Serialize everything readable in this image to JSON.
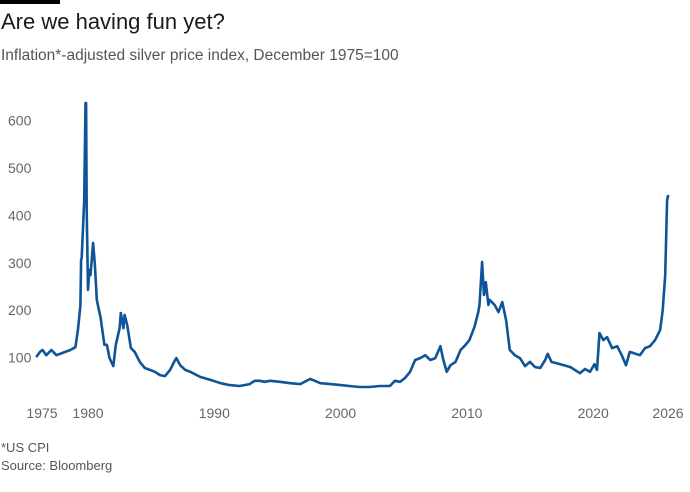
{
  "title": "Are we having fun yet?",
  "subtitle": "Inflation*-adjusted silver price index, December 1975=100",
  "footnote": "*US CPI",
  "source": "Source: Bloomberg",
  "chart_data": {
    "type": "line",
    "title": "Are we having fun yet?",
    "subtitle": "Inflation*-adjusted silver price index, December 1975=100",
    "xlabel": "",
    "ylabel": "",
    "xlim": [
      1975.8,
      2026
    ],
    "ylim": [
      0,
      650
    ],
    "grid": false,
    "line_color": "#0f5499",
    "x_ticks": [
      1975,
      1980,
      1990,
      2000,
      2010,
      2020,
      2026
    ],
    "y_ticks": [
      100,
      200,
      300,
      400,
      500,
      600
    ],
    "series": [
      {
        "x": [
          1975.9,
          1976.2,
          1976.4,
          1976.7,
          1977.1,
          1977.5,
          1978.2,
          1978.6,
          1979.0,
          1979.2,
          1979.4,
          1979.45,
          1979.5,
          1979.7,
          1979.8,
          1979.85,
          1979.9,
          1980.0,
          1980.1,
          1980.2,
          1980.4,
          1980.55,
          1980.7,
          1981.0,
          1981.3,
          1981.5,
          1981.7,
          1982.0,
          1982.2,
          1982.5,
          1982.6,
          1982.8,
          1982.9,
          1983.1,
          1983.4,
          1983.7,
          1984.1,
          1984.5,
          1984.9,
          1985.3,
          1985.7,
          1986.1,
          1986.5,
          1986.9,
          1987.0,
          1987.3,
          1987.7,
          1988.1,
          1988.9,
          1989.7,
          1990.5,
          1991.2,
          1992.0,
          1992.8,
          1993.2,
          1993.6,
          1994.0,
          1994.4,
          1995.2,
          1996.0,
          1996.8,
          1997.6,
          1998.4,
          1999.2,
          2000.0,
          2000.7,
          2001.5,
          2002.3,
          2003.1,
          2003.9,
          2004.3,
          2004.7,
          2005.1,
          2005.5,
          2005.9,
          2006.3,
          2006.7,
          2007.1,
          2007.5,
          2007.9,
          2008.1,
          2008.4,
          2008.7,
          2009.1,
          2009.5,
          2009.9,
          2010.2,
          2010.6,
          2010.9,
          2011.0,
          2011.2,
          2011.35,
          2011.5,
          2011.7,
          2011.8,
          2012.2,
          2012.5,
          2012.8,
          2013.1,
          2013.4,
          2013.8,
          2014.2,
          2014.6,
          2015.0,
          2015.4,
          2015.8,
          2016.2,
          2016.4,
          2016.7,
          2017.4,
          2018.2,
          2018.95,
          2019.35,
          2019.75,
          2020.1,
          2020.3,
          2020.5,
          2020.8,
          2021.1,
          2021.5,
          2021.9,
          2022.3,
          2022.6,
          2022.9,
          2023.7,
          2024.1,
          2024.5,
          2024.9,
          2025.3,
          2025.5,
          2025.7,
          2025.85,
          2025.95
        ],
        "y": [
          101,
          112,
          116,
          105,
          116,
          105,
          112,
          116,
          122,
          158,
          209,
          306,
          310,
          432,
          637,
          637,
          411,
          243,
          285,
          274,
          342,
          295,
          222,
          184,
          127,
          127,
          99,
          82,
          127,
          162,
          194,
          162,
          190,
          169,
          120,
          112,
          91,
          78,
          74,
          70,
          63,
          61,
          74,
          95,
          99,
          84,
          74,
          70,
          59,
          53,
          46,
          42,
          40,
          44,
          51,
          51,
          49,
          51,
          49,
          46,
          44,
          55,
          46,
          44,
          42,
          40,
          38,
          38,
          40,
          40,
          51,
          49,
          57,
          70,
          95,
          99,
          105,
          95,
          99,
          124,
          99,
          70,
          84,
          91,
          116,
          127,
          137,
          165,
          196,
          211,
          302,
          232,
          259,
          211,
          222,
          211,
          196,
          217,
          179,
          116,
          105,
          99,
          82,
          91,
          80,
          78,
          95,
          108,
          91,
          86,
          80,
          67,
          76,
          70,
          86,
          74,
          152,
          137,
          143,
          120,
          124,
          103,
          84,
          112,
          105,
          120,
          124,
          137,
          158,
          200,
          274,
          432,
          443
        ]
      }
    ]
  }
}
